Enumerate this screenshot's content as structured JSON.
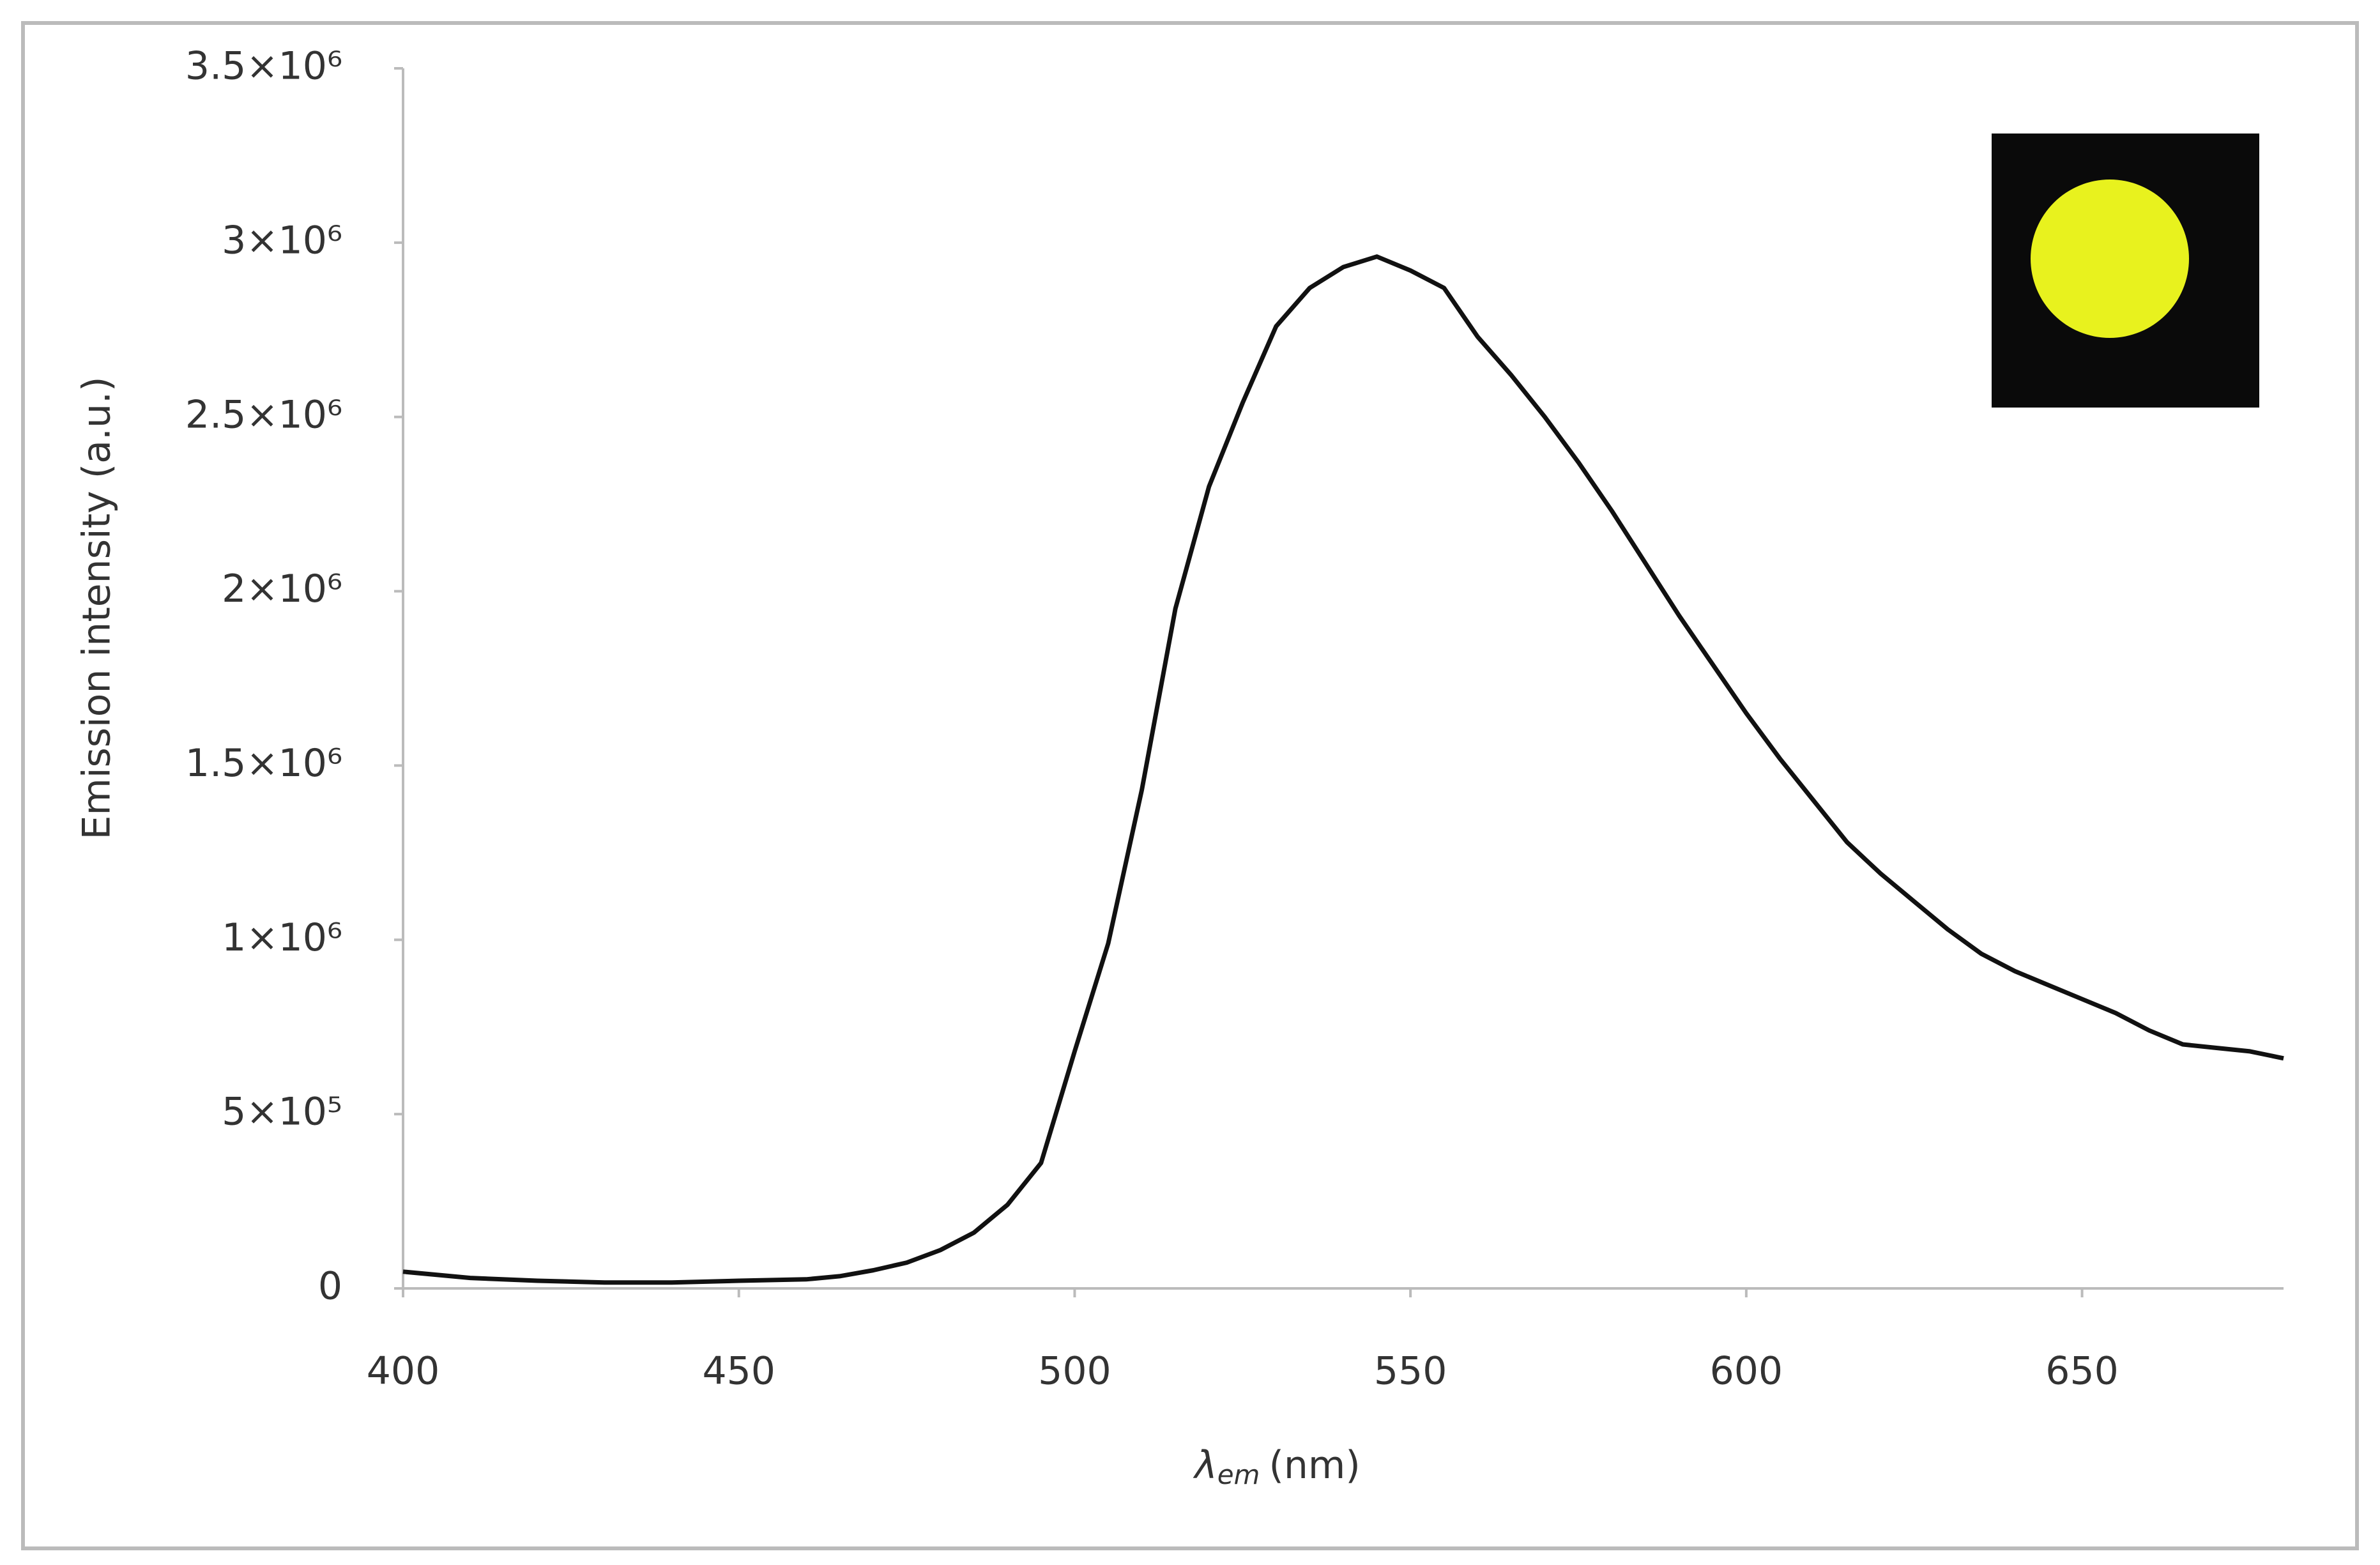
{
  "chart_data": {
    "type": "line",
    "ylabel": "Emission intensity (a.u.)",
    "xlabel_symbol": "λ",
    "xlabel_subscript": "em",
    "xlabel_unit": "(nm)",
    "x": [
      400,
      410,
      420,
      430,
      440,
      450,
      460,
      465,
      470,
      475,
      480,
      485,
      490,
      495,
      500,
      505,
      510,
      515,
      520,
      525,
      530,
      535,
      540,
      545,
      550,
      555,
      560,
      565,
      570,
      575,
      580,
      585,
      590,
      595,
      600,
      605,
      610,
      615,
      620,
      625,
      630,
      635,
      640,
      645,
      650,
      655,
      660,
      665,
      670,
      675,
      680
    ],
    "series": [
      {
        "color": "#111111",
        "values": [
          48000,
          30000,
          22000,
          17000,
          17000,
          22000,
          26000,
          35000,
          52000,
          74000,
          110000,
          160000,
          240000,
          360000,
          680000,
          990000,
          1430000,
          1950000,
          2300000,
          2540000,
          2760000,
          2870000,
          2930000,
          2960000,
          2920000,
          2870000,
          2730000,
          2620000,
          2500000,
          2370000,
          2230000,
          2080000,
          1930000,
          1790000,
          1650000,
          1520000,
          1400000,
          1280000,
          1190000,
          1110000,
          1030000,
          960000,
          910000,
          870000,
          830000,
          790000,
          740000,
          700000,
          690000,
          680000,
          660000
        ]
      }
    ],
    "xlim": [
      400,
      680
    ],
    "xticks": [
      400,
      450,
      500,
      550,
      600,
      650
    ],
    "ylim": [
      0,
      3500000
    ],
    "yticks": [
      0,
      {
        "value": 500000,
        "label": "5×10⁵"
      },
      {
        "value": 1000000,
        "label": "1×10⁶"
      },
      {
        "value": 1500000,
        "label": "1.5×10⁶"
      },
      {
        "value": 2000000,
        "label": "2×10⁶"
      },
      {
        "value": 2500000,
        "label": "2.5×10⁶"
      },
      {
        "value": 3000000,
        "label": "3×10⁶"
      },
      {
        "value": 3500000,
        "label": "3.5×10⁶"
      }
    ],
    "grid": false
  }
}
